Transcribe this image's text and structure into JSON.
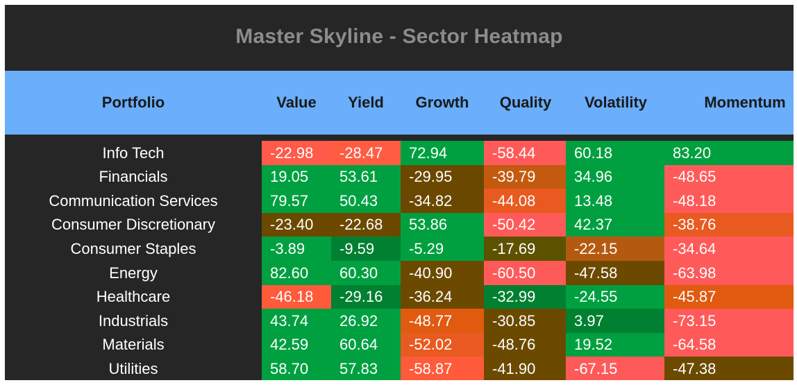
{
  "title": "Master Skyline - Sector Heatmap",
  "colors": {
    "frame_bg": "#262626",
    "title_text": "#8c8c8c",
    "header_bg": "#6aaefc",
    "low": "#ff5a5a",
    "mid": "#6b4a00",
    "high": "#00a040"
  },
  "chart_data": {
    "type": "heatmap",
    "row_header": "Portfolio",
    "columns": [
      "Value",
      "Yield",
      "Growth",
      "Quality",
      "Volatility",
      "Momentum"
    ],
    "rows": [
      "Info Tech",
      "Financials",
      "Communication Services",
      "Consumer Discretionary",
      "Consumer Staples",
      "Energy",
      "Healthcare",
      "Industrials",
      "Materials",
      "Utilities"
    ],
    "values": [
      [
        "-22.98",
        "-28.47",
        "72.94",
        "-58.44",
        "60.18",
        "83.20"
      ],
      [
        "19.05",
        "53.61",
        "-29.95",
        "-39.79",
        "34.96",
        "-48.65"
      ],
      [
        "79.57",
        "50.43",
        "-34.82",
        "-44.08",
        "13.48",
        "-48.18"
      ],
      [
        "-23.40",
        "-22.68",
        "53.86",
        "-50.42",
        "42.37",
        "-38.76"
      ],
      [
        "-3.89",
        "-9.59",
        "-5.29",
        "-17.69",
        "-22.15",
        "-34.64"
      ],
      [
        "82.60",
        "60.30",
        "-40.90",
        "-60.50",
        "-47.58",
        "-63.98"
      ],
      [
        "-46.18",
        "-29.16",
        "-36.24",
        "-32.99",
        "-24.55",
        "-45.87"
      ],
      [
        "43.74",
        "26.92",
        "-48.77",
        "-30.85",
        "3.97",
        "-73.15"
      ],
      [
        "42.59",
        "60.64",
        "-52.02",
        "-48.76",
        "19.52",
        "-64.58"
      ],
      [
        "58.70",
        "57.83",
        "-58.87",
        "-41.90",
        "-67.15",
        "-47.38"
      ]
    ],
    "cell_colors": [
      [
        "#ff5a4a",
        "#ff5c42",
        "#00a040",
        "#ff5a5a",
        "#00a040",
        "#00a040"
      ],
      [
        "#00a040",
        "#00a040",
        "#6b4800",
        "#c45a10",
        "#00a040",
        "#ff5a5a"
      ],
      [
        "#00a040",
        "#00a040",
        "#6b4800",
        "#e85a20",
        "#00a040",
        "#ff5a5a"
      ],
      [
        "#6b4a00",
        "#6b4a00",
        "#00a040",
        "#ff5a5a",
        "#00a040",
        "#e85a20"
      ],
      [
        "#00a040",
        "#008030",
        "#00a040",
        "#5c5200",
        "#b45a10",
        "#ff5a5a"
      ],
      [
        "#00a040",
        "#00a040",
        "#6b4a00",
        "#ff5a5a",
        "#6b4a00",
        "#ff5a5a"
      ],
      [
        "#ff5a3a",
        "#008030",
        "#6b4a00",
        "#008030",
        "#00a040",
        "#e05a10"
      ],
      [
        "#00a040",
        "#00a040",
        "#e05a10",
        "#6b4a00",
        "#008030",
        "#ff5a5a"
      ],
      [
        "#00a040",
        "#00a040",
        "#e85a20",
        "#6b4a00",
        "#00a040",
        "#ff5a5a"
      ],
      [
        "#00a040",
        "#00a040",
        "#ff5a3a",
        "#6b4a00",
        "#ff5a5a",
        "#6b4a00"
      ]
    ]
  }
}
